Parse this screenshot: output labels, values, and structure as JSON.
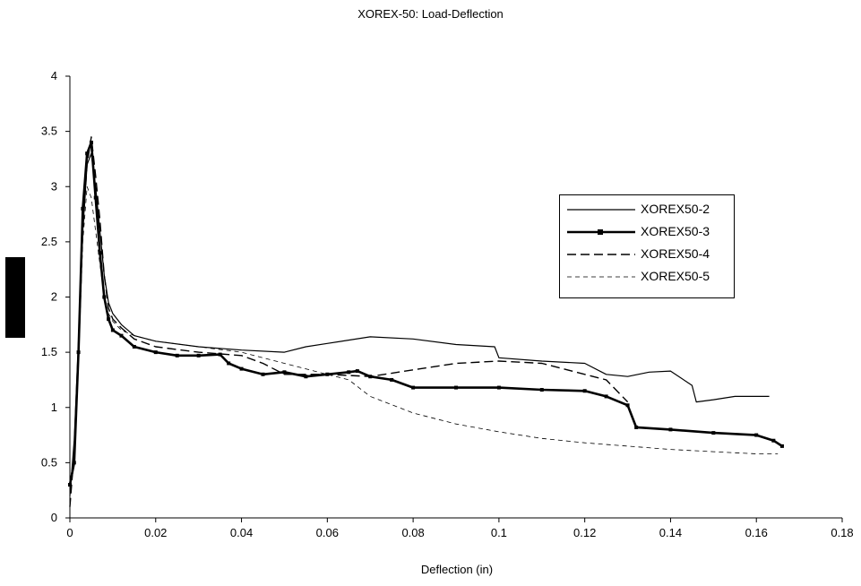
{
  "chart_data": {
    "type": "line",
    "title": "XOREX-50: Load-Deflection",
    "xlabel": "Deflection (in)",
    "ylabel": "",
    "xlim": [
      0,
      0.18
    ],
    "ylim": [
      0,
      4
    ],
    "x_ticks": [
      "0",
      "0.02",
      "0.04",
      "0.06",
      "0.08",
      "0.1",
      "0.12",
      "0.14",
      "0.16",
      "0.18"
    ],
    "y_ticks": [
      "0",
      "0.5",
      "1",
      "1.5",
      "2",
      "2.5",
      "3",
      "3.5",
      "4"
    ],
    "grid": false,
    "legend_position": "right",
    "series": [
      {
        "name": "XOREX50-2",
        "style": "thin-solid",
        "x": [
          0,
          0.001,
          0.002,
          0.003,
          0.004,
          0.005,
          0.006,
          0.007,
          0.008,
          0.009,
          0.01,
          0.012,
          0.015,
          0.02,
          0.03,
          0.04,
          0.05,
          0.055,
          0.06,
          0.07,
          0.08,
          0.09,
          0.099,
          0.1,
          0.11,
          0.12,
          0.125,
          0.13,
          0.135,
          0.14,
          0.145,
          0.146,
          0.15,
          0.155,
          0.16,
          0.163
        ],
        "y": [
          0.2,
          0.7,
          1.6,
          2.6,
          3.2,
          3.3,
          3.0,
          2.6,
          2.2,
          1.95,
          1.85,
          1.75,
          1.65,
          1.6,
          1.55,
          1.52,
          1.5,
          1.55,
          1.58,
          1.64,
          1.62,
          1.57,
          1.55,
          1.45,
          1.42,
          1.4,
          1.3,
          1.28,
          1.32,
          1.33,
          1.2,
          1.05,
          1.07,
          1.1,
          1.1,
          1.1
        ]
      },
      {
        "name": "XOREX50-3",
        "style": "thick-solid-markers",
        "x": [
          0,
          0.001,
          0.002,
          0.003,
          0.004,
          0.005,
          0.006,
          0.007,
          0.008,
          0.009,
          0.01,
          0.012,
          0.015,
          0.02,
          0.025,
          0.03,
          0.035,
          0.037,
          0.04,
          0.045,
          0.05,
          0.055,
          0.06,
          0.065,
          0.067,
          0.07,
          0.075,
          0.08,
          0.09,
          0.1,
          0.11,
          0.12,
          0.125,
          0.13,
          0.132,
          0.14,
          0.15,
          0.16,
          0.164,
          0.166
        ],
        "y": [
          0.3,
          0.5,
          1.5,
          2.8,
          3.3,
          3.4,
          2.9,
          2.4,
          2.0,
          1.8,
          1.7,
          1.65,
          1.55,
          1.5,
          1.47,
          1.47,
          1.48,
          1.4,
          1.35,
          1.3,
          1.32,
          1.28,
          1.3,
          1.32,
          1.33,
          1.28,
          1.25,
          1.18,
          1.18,
          1.18,
          1.16,
          1.15,
          1.1,
          1.02,
          0.82,
          0.8,
          0.77,
          0.75,
          0.7,
          0.65
        ]
      },
      {
        "name": "XOREX50-4",
        "style": "dashed",
        "x": [
          0,
          0.001,
          0.002,
          0.003,
          0.004,
          0.005,
          0.006,
          0.007,
          0.008,
          0.009,
          0.01,
          0.012,
          0.015,
          0.02,
          0.03,
          0.04,
          0.045,
          0.05,
          0.06,
          0.07,
          0.08,
          0.09,
          0.1,
          0.11,
          0.12,
          0.125,
          0.13
        ],
        "y": [
          0.1,
          0.6,
          1.5,
          2.6,
          3.2,
          3.45,
          3.1,
          2.7,
          2.2,
          1.9,
          1.8,
          1.72,
          1.62,
          1.55,
          1.5,
          1.47,
          1.4,
          1.3,
          1.3,
          1.28,
          1.34,
          1.4,
          1.42,
          1.4,
          1.3,
          1.25,
          1.05
        ]
      },
      {
        "name": "XOREX50-5",
        "style": "thin-dashed",
        "x": [
          0,
          0.001,
          0.002,
          0.003,
          0.004,
          0.005,
          0.006,
          0.007,
          0.008,
          0.009,
          0.01,
          0.012,
          0.015,
          0.02,
          0.03,
          0.04,
          0.05,
          0.06,
          0.065,
          0.07,
          0.08,
          0.09,
          0.1,
          0.11,
          0.12,
          0.13,
          0.14,
          0.15,
          0.16,
          0.165
        ],
        "y": [
          0.3,
          0.6,
          1.4,
          2.5,
          3.0,
          2.9,
          2.6,
          2.3,
          2.0,
          1.85,
          1.78,
          1.7,
          1.65,
          1.6,
          1.55,
          1.5,
          1.4,
          1.3,
          1.25,
          1.1,
          0.95,
          0.85,
          0.78,
          0.72,
          0.68,
          0.65,
          0.62,
          0.6,
          0.58,
          0.58
        ]
      }
    ]
  }
}
